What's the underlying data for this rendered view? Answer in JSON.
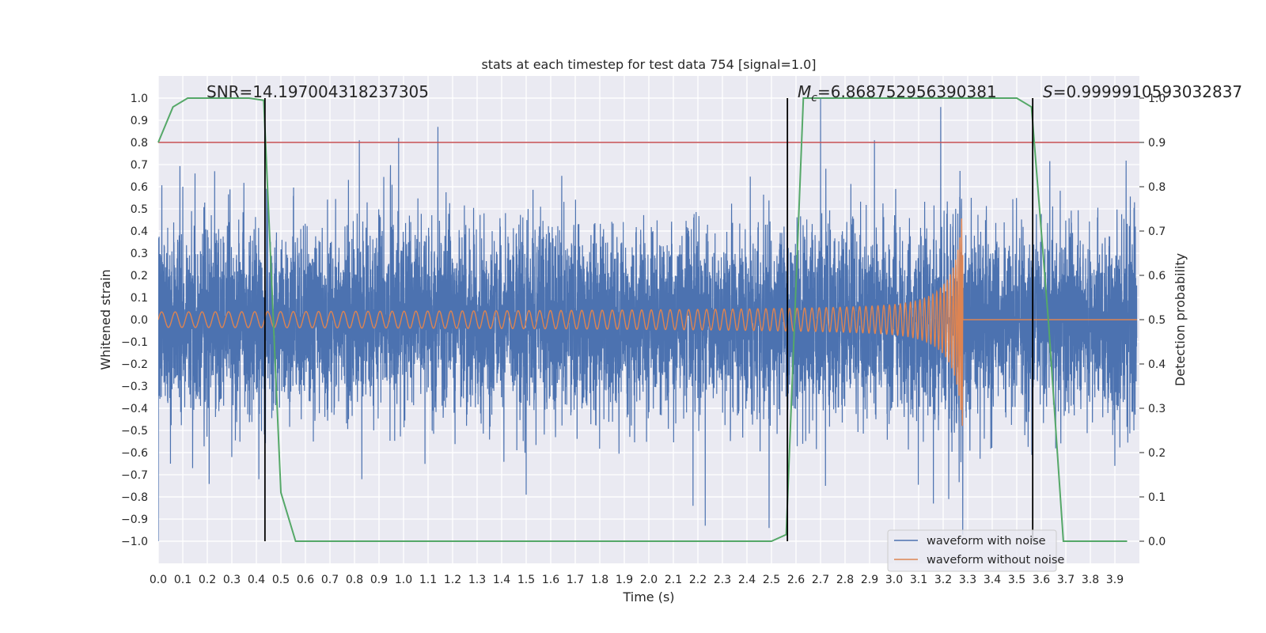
{
  "chart_data": {
    "type": "line",
    "title": "stats at each timestep for test data 754 [signal=1.0]",
    "xlabel": "Time (s)",
    "ylabel": "Whitened strain",
    "y2label": "Detection probability",
    "xlim": [
      0.0,
      4.0
    ],
    "ylim": [
      -1.1,
      1.1
    ],
    "y2lim": [
      -0.05,
      1.05
    ],
    "x_ticks": [
      0.0,
      0.1,
      0.2,
      0.3,
      0.4,
      0.5,
      0.6,
      0.7,
      0.8,
      0.9,
      1.0,
      1.1,
      1.2,
      1.3,
      1.4,
      1.5,
      1.6,
      1.7,
      1.8,
      1.9,
      2.0,
      2.1,
      2.2,
      2.3,
      2.4,
      2.5,
      2.6,
      2.7,
      2.8,
      2.9,
      3.0,
      3.1,
      3.2,
      3.3,
      3.4,
      3.5,
      3.6,
      3.7,
      3.8,
      3.9
    ],
    "y_ticks": [
      1.0,
      0.9,
      0.8,
      0.7,
      0.6,
      0.5,
      0.4,
      0.3,
      0.2,
      0.1,
      0.0,
      -0.1,
      -0.2,
      -0.3,
      -0.4,
      -0.5,
      -0.6,
      -0.7,
      -0.8,
      -0.9,
      -1.0
    ],
    "y2_ticks": [
      1.0,
      0.9,
      0.8,
      0.7,
      0.6,
      0.5,
      0.4,
      0.3,
      0.2,
      0.1,
      0.0
    ],
    "grid": true,
    "legend_position": "bottom-right",
    "annotations": {
      "snr": "SNR=14.197004318237305",
      "mc_symbol": "M",
      "mc_sub": "c",
      "mc_value": "=6.868752956390381",
      "s_symbol": "S",
      "s_value": "=0.9999910593032837"
    },
    "threshold": {
      "value": 0.9,
      "axis": "y2",
      "color": "#c44e52"
    },
    "vertical_markers": [
      0.435,
      2.565,
      3.565
    ],
    "series": [
      {
        "name": "waveform with noise",
        "color": "#4c72b0",
        "axis": "y",
        "sample_rate": 2048,
        "duration": 3.99,
        "std": 0.2,
        "seed": 754,
        "peaks": [
          [
            0.0,
            -1.0
          ],
          [
            0.05,
            -0.65
          ],
          [
            0.1,
            0.6
          ],
          [
            0.14,
            -0.67
          ],
          [
            0.15,
            0.66
          ],
          [
            0.23,
            0.67
          ],
          [
            0.3,
            -0.62
          ],
          [
            0.41,
            -0.72
          ],
          [
            0.82,
            0.81
          ],
          [
            0.83,
            -0.72
          ],
          [
            0.98,
            0.82
          ],
          [
            1.14,
            0.87
          ],
          [
            1.5,
            -0.79
          ],
          [
            2.18,
            -0.84
          ],
          [
            2.23,
            -0.93
          ],
          [
            2.49,
            -0.94
          ],
          [
            2.7,
            1.0
          ],
          [
            2.72,
            -0.75
          ],
          [
            2.92,
            0.81
          ],
          [
            3.16,
            -0.83
          ],
          [
            3.19,
            0.96
          ],
          [
            3.28,
            -0.97
          ],
          [
            3.9,
            -0.66
          ],
          [
            3.98,
            0.53
          ]
        ]
      },
      {
        "name": "waveform without noise",
        "color": "#dd8452",
        "axis": "y",
        "t_merge": 3.28,
        "t_start": 0.0,
        "amplitude_start": 0.035,
        "amplitude_peak": 0.48,
        "freq_start": 18,
        "freq_end": 150
      },
      {
        "name": "detection probability",
        "color": "#55a868",
        "axis": "y2",
        "x": [
          0.0,
          0.06,
          0.12,
          0.2,
          0.3,
          0.37,
          0.43,
          0.5,
          0.56,
          0.6,
          1.0,
          1.5,
          2.0,
          2.45,
          2.5,
          2.56,
          2.63,
          2.69,
          2.8,
          3.0,
          3.5,
          3.56,
          3.63,
          3.69,
          3.75,
          3.8,
          3.95
        ],
        "values": [
          0.9,
          0.98,
          1.0,
          1.0,
          1.0,
          1.0,
          0.995,
          0.11,
          0.0,
          0.0,
          0.0,
          0.0,
          0.0,
          0.0,
          0.0,
          0.015,
          1.0,
          1.0,
          1.0,
          1.0,
          1.0,
          0.98,
          0.49,
          0.0,
          0.0,
          0.0,
          0.0
        ]
      }
    ]
  }
}
